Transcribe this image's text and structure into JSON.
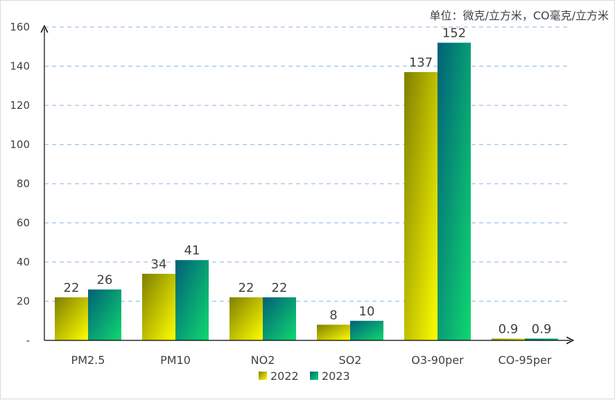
{
  "chart_data": {
    "type": "bar",
    "unit_note": "单位：微克/立方米，CO毫克/立方米",
    "categories": [
      "PM2.5",
      "PM10",
      "NO2",
      "SO2",
      "O3-90per",
      "CO-95per"
    ],
    "series": [
      {
        "name": "2022",
        "values": [
          22,
          34,
          22,
          8,
          137,
          0.9
        ],
        "labels": [
          "22",
          "34",
          "22",
          "8",
          "137",
          "0.9"
        ],
        "colors": [
          "#7f7f00",
          "#ffff00"
        ]
      },
      {
        "name": "2023",
        "values": [
          26,
          41,
          22,
          10,
          152,
          0.9
        ],
        "labels": [
          "26",
          "41",
          "22",
          "10",
          "152",
          "0.9"
        ],
        "colors": [
          "#006078",
          "#10d870"
        ]
      }
    ],
    "yticks": [
      "-",
      "20",
      "40",
      "60",
      "80",
      "100",
      "120",
      "140",
      "160"
    ],
    "ylim": [
      0,
      160
    ],
    "grid": true,
    "legend_position": "bottom"
  }
}
